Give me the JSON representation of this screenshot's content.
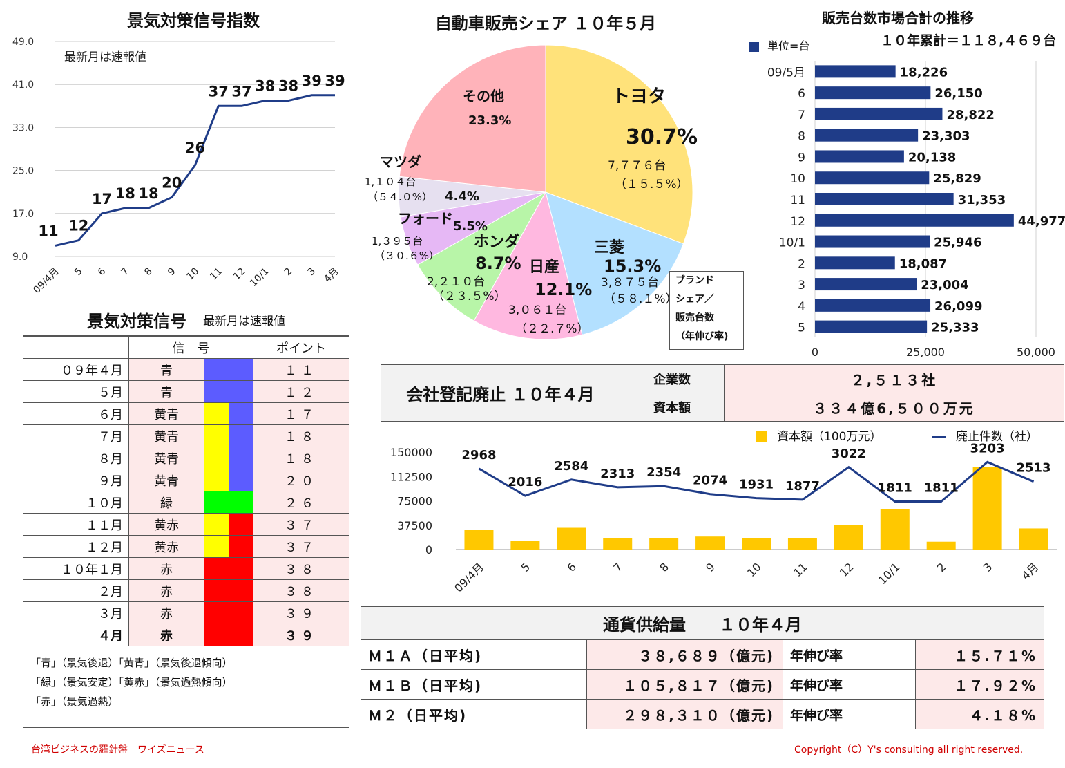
{
  "colors": {
    "navy": "#1f3c88",
    "accent_gold": "#ffc800",
    "pink_bg": "#fde9e9",
    "blue": "#5c5cff",
    "yellow": "#ffff00",
    "green": "#00ff00",
    "red": "#ff0000"
  },
  "index_chart": {
    "title": "景気対策信号指数",
    "note": "最新月は速報値",
    "chart_data": {
      "type": "line",
      "categories": [
        "09/4月",
        "5",
        "6",
        "7",
        "8",
        "9",
        "10",
        "11",
        "12",
        "10/1",
        "2",
        "3",
        "4月"
      ],
      "values": [
        11,
        12,
        17,
        18,
        18,
        20,
        26,
        37,
        37,
        38,
        38,
        39,
        39
      ],
      "y_ticks": [
        "49.0",
        "41.0",
        "33.0",
        "25.0",
        "17.0",
        "9.0"
      ],
      "ylim": [
        9,
        49
      ],
      "grid": true
    }
  },
  "pie_chart": {
    "title": "自動車販売シェア １０年５月",
    "legend_box": [
      "ブランド",
      "シェア／",
      "販売台数",
      "（年伸び率)"
    ],
    "chart_data": {
      "type": "pie",
      "slices": [
        {
          "label": "トヨタ",
          "pct_text": "30.7%",
          "value": 30.7,
          "units": "7,７７６台",
          "growth": "（１５.５%）",
          "color": "#ffe27a"
        },
        {
          "label": "三菱",
          "pct_text": "15.3%",
          "value": 15.3,
          "units": "3,８７５台",
          "growth": "（５８.１%）",
          "color": "#b3e0ff"
        },
        {
          "label": "日産",
          "pct_text": "12.1%",
          "value": 12.1,
          "units": "3,０６１台",
          "growth": "（２２.７%）",
          "color": "#ffb8e0"
        },
        {
          "label": "ホンダ",
          "pct_text": "8.7%",
          "value": 8.7,
          "units": "2,２１０台",
          "growth": "（２３.５%）",
          "color": "#b8f5a8"
        },
        {
          "label": "フォード",
          "pct_text": "5.5%",
          "value": 5.5,
          "units": "1,３９５台",
          "growth": "（３０.６%）",
          "color": "#e6b8f5"
        },
        {
          "label": "マツダ",
          "pct_text": "4.4%",
          "value": 4.4,
          "units": "1,１０４台",
          "growth": "（５４.０%）",
          "color": "#e6e0f0"
        },
        {
          "label": "その他",
          "pct_text": "23.3%",
          "value": 23.3,
          "units": "",
          "growth": "",
          "color": "#ffb3ba"
        }
      ]
    }
  },
  "sales_bar": {
    "title": "販売台数市場合計の推移",
    "legend": "単位=台",
    "cumulative": "１０年累計＝１１８,４６９台",
    "chart_data": {
      "type": "bar",
      "orientation": "horizontal",
      "categories": [
        "09/5月",
        "6",
        "7",
        "8",
        "9",
        "10",
        "11",
        "12",
        "10/1",
        "2",
        "3",
        "4",
        "5"
      ],
      "values": [
        18226,
        26150,
        28822,
        23303,
        20138,
        25829,
        31353,
        44977,
        25946,
        18087,
        23004,
        26099,
        25333
      ],
      "value_labels": [
        "18,226",
        "26,150",
        "28,822",
        "23,303",
        "20,138",
        "25,829",
        "31,353",
        "44,977",
        "25,946",
        "18,087",
        "23,004",
        "26,099",
        "25,333"
      ],
      "x_ticks": [
        "0",
        "25,000",
        "50,000"
      ],
      "xlim": [
        0,
        50000
      ]
    }
  },
  "signal_table": {
    "title": "景気対策信号",
    "note": "最新月は速報値",
    "headers": {
      "signal": "信　号",
      "point": "ポイント"
    },
    "rows": [
      {
        "month": "０９年４月",
        "signal": "青",
        "point": "１１",
        "colors": [
          "blue"
        ]
      },
      {
        "month": "５月",
        "signal": "青",
        "point": "１２",
        "colors": [
          "blue"
        ]
      },
      {
        "month": "６月",
        "signal": "黄青",
        "point": "１７",
        "colors": [
          "yellow",
          "blue"
        ]
      },
      {
        "month": "７月",
        "signal": "黄青",
        "point": "１８",
        "colors": [
          "yellow",
          "blue"
        ]
      },
      {
        "month": "８月",
        "signal": "黄青",
        "point": "１８",
        "colors": [
          "yellow",
          "blue"
        ]
      },
      {
        "month": "９月",
        "signal": "黄青",
        "point": "２０",
        "colors": [
          "yellow",
          "blue"
        ]
      },
      {
        "month": "１０月",
        "signal": "緑",
        "point": "２６",
        "colors": [
          "green"
        ]
      },
      {
        "month": "１１月",
        "signal": "黄赤",
        "point": "３７",
        "colors": [
          "yellow",
          "red"
        ]
      },
      {
        "month": "１２月",
        "signal": "黄赤",
        "point": "３７",
        "colors": [
          "yellow",
          "red"
        ]
      },
      {
        "month": "１０年１月",
        "signal": "赤",
        "point": "３８",
        "colors": [
          "red"
        ]
      },
      {
        "month": "２月",
        "signal": "赤",
        "point": "３８",
        "colors": [
          "red"
        ]
      },
      {
        "month": "３月",
        "signal": "赤",
        "point": "３９",
        "colors": [
          "red"
        ]
      },
      {
        "month": "４月",
        "signal": "赤",
        "point": "３９",
        "colors": [
          "red"
        ]
      }
    ],
    "legend": [
      "「青」（景気後退）「黄青」（景気後退傾向）",
      "「緑」（景気安定）「黄赤」（景気過熱傾向）",
      "「赤」（景気過熱）"
    ]
  },
  "registry": {
    "title": "会社登記廃止 １０年４月",
    "rows": [
      {
        "label": "企業数",
        "value": "２,５１３社"
      },
      {
        "label": "資本額",
        "value": "３３４億6,５００万元"
      }
    ]
  },
  "closure_chart": {
    "legend": {
      "bar": "資本額（100万元）",
      "line": "廃止件数（社）"
    },
    "chart_data": {
      "type": "bar+line",
      "categories": [
        "09/4月",
        "5",
        "6",
        "7",
        "8",
        "9",
        "10",
        "11",
        "12",
        "10/1",
        "2",
        "3",
        "4月"
      ],
      "y_ticks": [
        "150000",
        "112500",
        "75000",
        "37500",
        "0"
      ],
      "ylim": [
        0,
        150000
      ],
      "bar_values": [
        30000,
        13500,
        33500,
        17500,
        17500,
        20000,
        17500,
        17500,
        37500,
        62000,
        12000,
        127000,
        32500
      ],
      "line_values": [
        2968,
        2016,
        2584,
        2313,
        2354,
        2074,
        1931,
        1877,
        3022,
        1811,
        1811,
        3203,
        2513
      ],
      "line_labels": [
        "2968",
        "2016",
        "2584",
        "2313",
        "2354",
        "2074",
        "1931",
        "1877",
        "3022",
        "1811",
        "1811",
        "3203",
        "2513"
      ]
    }
  },
  "money_supply": {
    "title": "通貨供給量　　１０年４月",
    "rows": [
      {
        "name": "Ｍ１Ａ（日平均)",
        "value": "３８,６８９（億元)",
        "rate_label": "年伸び率",
        "rate": "１５.７１%"
      },
      {
        "name": "Ｍ１Ｂ（日平均)",
        "value": "１０５,８１７（億元)",
        "rate_label": "年伸び率",
        "rate": "１７.９２%"
      },
      {
        "name": "Ｍ２（日平均)",
        "value": "２９８,３１０（億元)",
        "rate_label": "年伸び率",
        "rate": "４.１８%"
      }
    ]
  },
  "footer": {
    "left": "台湾ビジネスの羅針盤　ワイズニュース",
    "right": "Copyright（C）Y's consulting all right reserved."
  }
}
